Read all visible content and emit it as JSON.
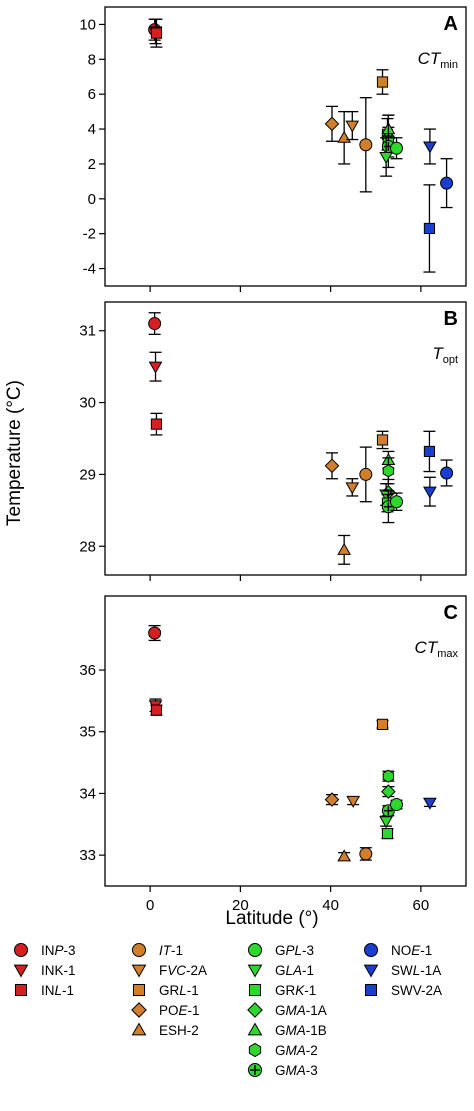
{
  "chart_data": {
    "type": "scatter",
    "xlabel": "Latitude (°)",
    "ylabel": "Temperature (°C)",
    "xlim": [
      -10,
      70
    ],
    "xticks": [
      0,
      20,
      40,
      60
    ],
    "colors": {
      "red": "#d42020",
      "orange": "#d27f2c",
      "green": "#2dd82d",
      "blue": "#1a3fcf"
    },
    "series": [
      {
        "name": "INP-3",
        "pre": "IN",
        "it": "P",
        "post": "-3",
        "color": "red",
        "marker": "circle"
      },
      {
        "name": "INK-1",
        "pre": "INK",
        "it": "",
        "post": "-1",
        "color": "red",
        "marker": "triangle-down"
      },
      {
        "name": "INL-1",
        "pre": "IN",
        "it": "L",
        "post": "-1",
        "color": "red",
        "marker": "square"
      },
      {
        "name": "IT-1",
        "pre": "",
        "it": "IT",
        "post": "-1",
        "color": "orange",
        "marker": "circle"
      },
      {
        "name": "FVC-2A",
        "pre": "F",
        "it": "VC",
        "post": "-2A",
        "color": "orange",
        "marker": "triangle-down"
      },
      {
        "name": "GRL-1",
        "pre": "GR",
        "it": "L",
        "post": "-1",
        "color": "orange",
        "marker": "square"
      },
      {
        "name": "POE-1",
        "pre": "PO",
        "it": "E",
        "post": "-1",
        "color": "orange",
        "marker": "diamond"
      },
      {
        "name": "ESH-2",
        "pre": "ESH",
        "it": "",
        "post": "-2",
        "color": "orange",
        "marker": "triangle-up"
      },
      {
        "name": "GPL-3",
        "pre": "G",
        "it": "PL",
        "post": "-3",
        "color": "green",
        "marker": "circle"
      },
      {
        "name": "GLA-1",
        "pre": "G",
        "it": "LA",
        "post": "-1",
        "color": "green",
        "marker": "triangle-down"
      },
      {
        "name": "GRK-1",
        "pre": "GR",
        "it": "K",
        "post": "-1",
        "color": "green",
        "marker": "square"
      },
      {
        "name": "GMA-1A",
        "pre": "G",
        "it": "MA",
        "post": "-1A",
        "color": "green",
        "marker": "diamond"
      },
      {
        "name": "GMA-1B",
        "pre": "G",
        "it": "MA",
        "post": "-1B",
        "color": "green",
        "marker": "triangle-up"
      },
      {
        "name": "GMA-2",
        "pre": "G",
        "it": "MA",
        "post": "-2",
        "color": "green",
        "marker": "hexagon"
      },
      {
        "name": "GMA-3",
        "pre": "G",
        "it": "MA",
        "post": "-3",
        "color": "green",
        "marker": "circle-cross"
      },
      {
        "name": "NOE-1",
        "pre": "NO",
        "it": "E",
        "post": "-1",
        "color": "blue",
        "marker": "circle"
      },
      {
        "name": "SWL-1A",
        "pre": "SW",
        "it": "L",
        "post": "-1A",
        "color": "blue",
        "marker": "triangle-down"
      },
      {
        "name": "SWV-2A",
        "pre": "SWV",
        "it": "",
        "post": "-2A",
        "color": "blue",
        "marker": "square"
      }
    ],
    "legend_columns": [
      [
        "INP-3",
        "INK-1",
        "INL-1"
      ],
      [
        "IT-1",
        "FVC-2A",
        "GRL-1",
        "POE-1",
        "ESH-2"
      ],
      [
        "GPL-3",
        "GLA-1",
        "GRK-1",
        "GMA-1A",
        "GMA-1B",
        "GMA-2",
        "GMA-3"
      ],
      [
        "NOE-1",
        "SWL-1A",
        "SWV-2A"
      ]
    ],
    "panels": [
      {
        "letter": "A",
        "var_it": "CT",
        "var_sub": "min",
        "ylim": [
          -5,
          11
        ],
        "yticks": [
          -4,
          -2,
          0,
          2,
          4,
          6,
          8,
          10
        ],
        "points": [
          {
            "s": "INP-3",
            "x": 1.0,
            "y": 9.7,
            "err": 0.6
          },
          {
            "s": "INK-1",
            "x": 1.2,
            "y": 9.6,
            "err": 0.7
          },
          {
            "s": "INL-1",
            "x": 1.4,
            "y": 9.5,
            "err": 0.8
          },
          {
            "s": "POE-1",
            "x": 40.3,
            "y": 4.3,
            "err": 1.0
          },
          {
            "s": "ESH-2",
            "x": 43.0,
            "y": 3.5,
            "err": 1.5
          },
          {
            "s": "FVC-2A",
            "x": 44.8,
            "y": 4.2,
            "err": 0.8
          },
          {
            "s": "IT-1",
            "x": 47.8,
            "y": 3.1,
            "err": 2.7
          },
          {
            "s": "GRL-1",
            "x": 51.5,
            "y": 6.7,
            "err": 0.7
          },
          {
            "s": "GRK-1",
            "x": 52.6,
            "y": 3.7,
            "err": 0.9
          },
          {
            "s": "GMA-1A",
            "x": 52.8,
            "y": 3.5,
            "err": 0.6
          },
          {
            "s": "GMA-1B",
            "x": 52.8,
            "y": 4.0,
            "err": 0.8
          },
          {
            "s": "GMA-2",
            "x": 52.8,
            "y": 3.3,
            "err": 1.5
          },
          {
            "s": "GMA-3",
            "x": 52.8,
            "y": 3.0,
            "err": 0.6
          },
          {
            "s": "GLA-1",
            "x": 52.3,
            "y": 2.4,
            "err": 1.1
          },
          {
            "s": "GPL-3",
            "x": 54.6,
            "y": 2.9,
            "err": 0.6
          },
          {
            "s": "SWL-1A",
            "x": 62.0,
            "y": 3.0,
            "err": 1.0
          },
          {
            "s": "SWV-2A",
            "x": 61.9,
            "y": -1.7,
            "err": 2.5
          },
          {
            "s": "NOE-1",
            "x": 65.7,
            "y": 0.9,
            "err": 1.4
          }
        ]
      },
      {
        "letter": "B",
        "var_it": "T",
        "var_sub": "opt",
        "ylim": [
          27.6,
          31.4
        ],
        "yticks": [
          28,
          29,
          30,
          31
        ],
        "points": [
          {
            "s": "INP-3",
            "x": 1.0,
            "y": 31.1,
            "err": 0.15
          },
          {
            "s": "INK-1",
            "x": 1.2,
            "y": 30.5,
            "err": 0.2
          },
          {
            "s": "INL-1",
            "x": 1.4,
            "y": 29.7,
            "err": 0.15
          },
          {
            "s": "POE-1",
            "x": 40.3,
            "y": 29.12,
            "err": 0.18
          },
          {
            "s": "ESH-2",
            "x": 43.0,
            "y": 27.95,
            "err": 0.2
          },
          {
            "s": "FVC-2A",
            "x": 44.8,
            "y": 28.82,
            "err": 0.12
          },
          {
            "s": "IT-1",
            "x": 47.8,
            "y": 29.0,
            "err": 0.38
          },
          {
            "s": "GRL-1",
            "x": 51.5,
            "y": 29.48,
            "err": 0.12
          },
          {
            "s": "GMA-1B",
            "x": 52.8,
            "y": 29.2,
            "err": 0.12
          },
          {
            "s": "GMA-2",
            "x": 52.8,
            "y": 29.05,
            "err": 0.18
          },
          {
            "s": "GMA-1A",
            "x": 52.8,
            "y": 28.75,
            "err": 0.18
          },
          {
            "s": "GLA-1",
            "x": 52.3,
            "y": 28.72,
            "err": 0.15
          },
          {
            "s": "GRK-1",
            "x": 52.6,
            "y": 28.6,
            "err": 0.12
          },
          {
            "s": "GMA-3",
            "x": 52.8,
            "y": 28.55,
            "err": 0.22
          },
          {
            "s": "GPL-3",
            "x": 54.6,
            "y": 28.62,
            "err": 0.12
          },
          {
            "s": "SWV-2A",
            "x": 61.9,
            "y": 29.32,
            "err": 0.28
          },
          {
            "s": "SWL-1A",
            "x": 62.0,
            "y": 28.76,
            "err": 0.2
          },
          {
            "s": "NOE-1",
            "x": 65.7,
            "y": 29.02,
            "err": 0.18
          }
        ]
      },
      {
        "letter": "C",
        "var_it": "CT",
        "var_sub": "max",
        "ylim": [
          32.5,
          37.2
        ],
        "yticks": [
          33,
          34,
          35,
          36
        ],
        "points": [
          {
            "s": "INP-3",
            "x": 1.0,
            "y": 36.6,
            "err": 0.12
          },
          {
            "s": "INK-1",
            "x": 1.2,
            "y": 35.43,
            "err": 0.1
          },
          {
            "s": "INL-1",
            "x": 1.4,
            "y": 35.35,
            "err": 0.08
          },
          {
            "s": "POE-1",
            "x": 40.3,
            "y": 33.9,
            "err": 0.08
          },
          {
            "s": "ESH-2",
            "x": 43.0,
            "y": 32.98,
            "err": 0.06
          },
          {
            "s": "FVC-2A",
            "x": 45.0,
            "y": 33.88,
            "err": 0.06
          },
          {
            "s": "IT-1",
            "x": 47.8,
            "y": 33.02,
            "err": 0.1
          },
          {
            "s": "GRL-1",
            "x": 51.5,
            "y": 35.12,
            "err": 0.06
          },
          {
            "s": "GMA-2",
            "x": 52.8,
            "y": 34.28,
            "err": 0.08
          },
          {
            "s": "GMA-1A",
            "x": 52.8,
            "y": 34.03,
            "err": 0.08
          },
          {
            "s": "GMA-3",
            "x": 52.8,
            "y": 33.72,
            "err": 0.08
          },
          {
            "s": "GLA-1",
            "x": 52.3,
            "y": 33.55,
            "err": 0.08
          },
          {
            "s": "GRK-1",
            "x": 52.6,
            "y": 33.35,
            "err": 0.08
          },
          {
            "s": "GPL-3",
            "x": 54.6,
            "y": 33.82,
            "err": 0.07
          },
          {
            "s": "SWL-1A",
            "x": 62.0,
            "y": 33.85,
            "err": 0.06
          }
        ]
      }
    ]
  }
}
